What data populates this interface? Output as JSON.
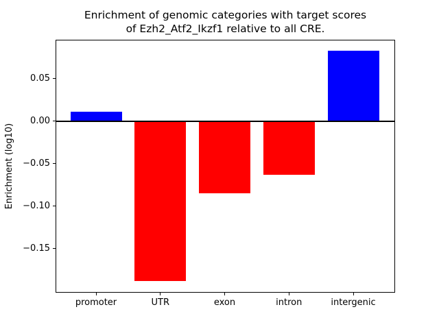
{
  "chart_data": {
    "type": "bar",
    "title": "Enrichment of genomic categories with target scores\nof Ezh2_Atf2_Ikzf1 relative to all CRE.",
    "title_line1": "Enrichment of genomic categories with target scores",
    "title_line2": "of Ezh2_Atf2_Ikzf1 relative to all CRE.",
    "xlabel": "",
    "ylabel": "Enrichment (log10)",
    "categories": [
      "promoter",
      "UTR",
      "exon",
      "intron",
      "intergenic"
    ],
    "values": [
      0.011,
      -0.188,
      -0.085,
      -0.063,
      0.083
    ],
    "bar_colors": [
      "#0000ff",
      "#ff0000",
      "#ff0000",
      "#ff0000",
      "#0000ff"
    ],
    "positive_color": "#0000ff",
    "negative_color": "#ff0000",
    "ylim": [
      -0.202,
      0.096
    ],
    "yticks": [
      0.05,
      0.0,
      -0.05,
      -0.1,
      -0.15
    ],
    "ytick_labels": [
      "0.05",
      "0.00",
      "−0.05",
      "−0.10",
      "−0.15"
    ],
    "zero_line": true,
    "grid": false,
    "legend": false,
    "frame_color": "#000000",
    "text_color": "#000000",
    "background_color": "#ffffff"
  }
}
